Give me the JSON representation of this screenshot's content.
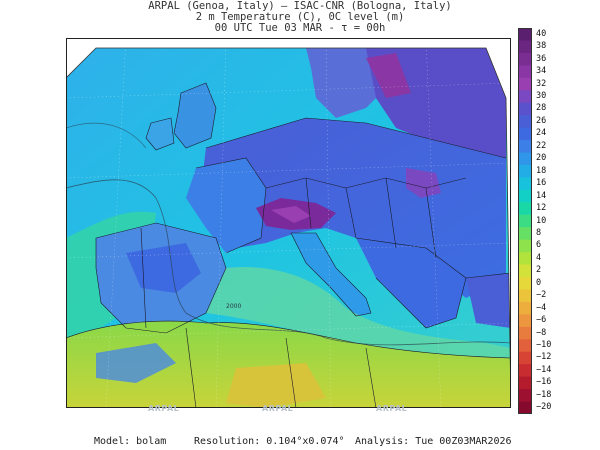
{
  "header": {
    "line1": "ARPAL (Genoa, Italy)  —  ISAC-CNR (Bologna, Italy)",
    "line2": "2 m Temperature (C), 0C level (m)",
    "line3": "00 UTC Tue 03 MAR  -  τ = 00h"
  },
  "colorbar": {
    "labels": [
      "40",
      "38",
      "36",
      "34",
      "32",
      "30",
      "28",
      "26",
      "24",
      "22",
      "20",
      "18",
      "16",
      "14",
      "12",
      "10",
      "8",
      "6",
      "4",
      "2",
      "0",
      "−2",
      "−4",
      "−6",
      "−8",
      "−10",
      "−12",
      "−14",
      "−16",
      "−18",
      "−20"
    ],
    "colors": [
      "#5a1f6e",
      "#6a2680",
      "#7a2e92",
      "#8a36a4",
      "#9a3fb2",
      "#7a48c0",
      "#5a52cc",
      "#4a5ed6",
      "#3d6ae0",
      "#3c7fe6",
      "#2f96ea",
      "#22ade6",
      "#18c2dc",
      "#12d0c6",
      "#1ad8a6",
      "#3cdc84",
      "#66e064",
      "#8ee24c",
      "#b2e23c",
      "#d2e23a",
      "#e6d83a",
      "#ecc43c",
      "#eeae3e",
      "#ec9640",
      "#e87c3e",
      "#e2603a",
      "#d84434",
      "#c82c30",
      "#b41c2e",
      "#9e1030",
      "#860a2e"
    ]
  },
  "map": {
    "watermark": "ARPAL",
    "isoline_label": "2000",
    "colors": {
      "sea": "#22c6e6",
      "north_land": "#5f5fd8",
      "alps": "#7a2a9a",
      "spain": "#4a8ae2",
      "africa": "#9edc3c",
      "sahara": "#d8c43a",
      "north_sea": "#3ab0e6"
    }
  },
  "footer": {
    "model": "Model: bolam",
    "resolution": "Resolution: 0.104°x0.074°",
    "analysis": "Analysis: Tue 00Z03MAR2026"
  }
}
